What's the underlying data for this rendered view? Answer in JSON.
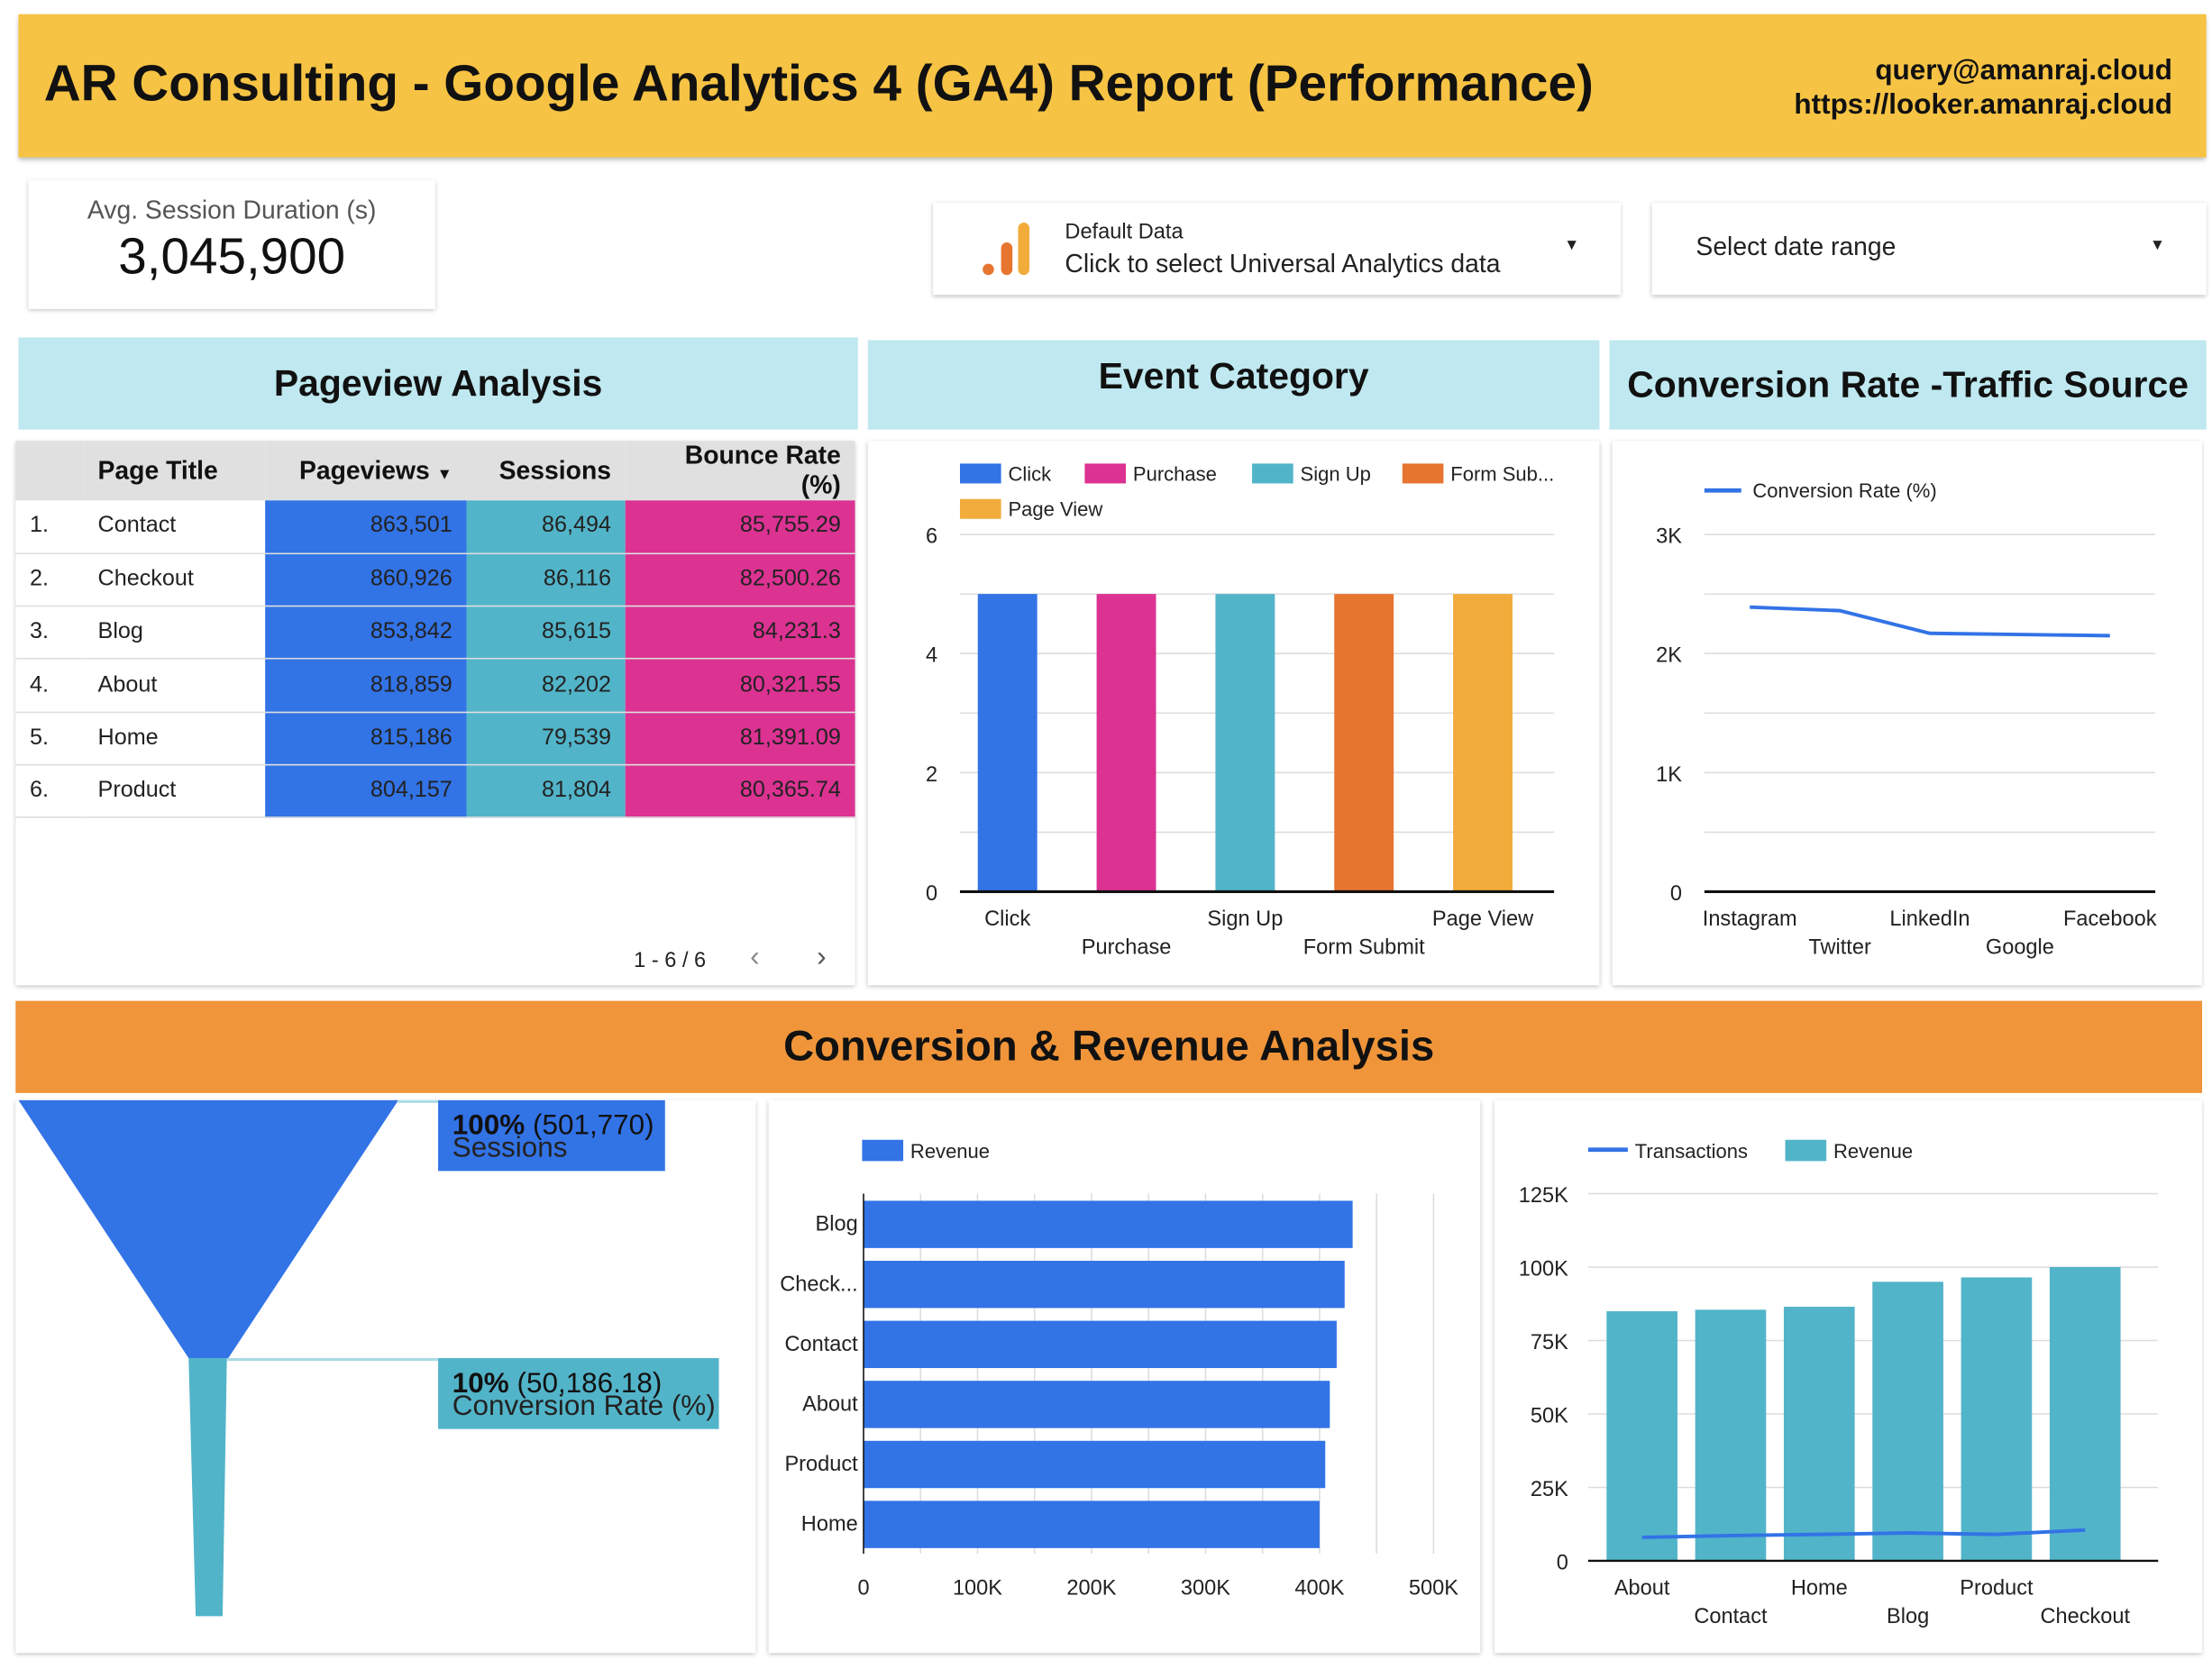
{
  "header": {
    "title": "AR Consulting - Google Analytics 4 (GA4) Report (Performance)",
    "email": "query@amanraj.cloud",
    "url": "https://looker.amanraj.cloud",
    "color": "#f6c344"
  },
  "scorecard": {
    "label": "Avg. Session Duration (s)",
    "value": "3,045,900"
  },
  "data_control": {
    "label": "Default Data",
    "value": "Click to select Universal Analytics data",
    "icon": "analytics-bars-icon"
  },
  "date_range": {
    "label": "Select date range",
    "icon": "caret-down-icon"
  },
  "sections": {
    "pageview": "Pageview Analysis",
    "event": "Event Category",
    "conversion": "Conversion Rate -Traffic Source",
    "revenue": "Conversion & Revenue Analysis"
  },
  "table": {
    "headers": [
      "Page Title",
      "Pageviews",
      "Sessions",
      "Bounce Rate (%)"
    ],
    "sort_icon": "sort-desc-icon",
    "rows": [
      {
        "idx": "1.",
        "title": "Contact",
        "pageviews": "863,501",
        "sessions": "86,494",
        "bounce": "85,755.29"
      },
      {
        "idx": "2.",
        "title": "Checkout",
        "pageviews": "860,926",
        "sessions": "86,116",
        "bounce": "82,500.26"
      },
      {
        "idx": "3.",
        "title": "Blog",
        "pageviews": "853,842",
        "sessions": "85,615",
        "bounce": "84,231.3"
      },
      {
        "idx": "4.",
        "title": "About",
        "pageviews": "818,859",
        "sessions": "82,202",
        "bounce": "80,321.55"
      },
      {
        "idx": "5.",
        "title": "Home",
        "pageviews": "815,186",
        "sessions": "79,539",
        "bounce": "81,391.09"
      },
      {
        "idx": "6.",
        "title": "Product",
        "pageviews": "804,157",
        "sessions": "81,804",
        "bounce": "80,365.74"
      }
    ],
    "pagination": "1 - 6 / 6",
    "colors": {
      "pageviews": "#3273e6",
      "sessions": "#52b4c9",
      "bounce": "#dc3292"
    }
  },
  "chart_data": [
    {
      "type": "bar",
      "categories": [
        "Click",
        "Purchase",
        "Sign Up",
        "Form Submit",
        "Page View"
      ],
      "legend": [
        "Click",
        "Purchase",
        "Sign Up",
        "Form Sub...",
        "Page View"
      ],
      "values": [
        5,
        5,
        5,
        5,
        5
      ],
      "colors": [
        "#3273e6",
        "#dc3292",
        "#52b4c9",
        "#e67530",
        "#f2ac3c"
      ],
      "ylim": [
        0,
        6
      ],
      "yticks": [
        "0",
        "2",
        "4",
        "6"
      ],
      "grid": true,
      "legend_position": "top"
    },
    {
      "type": "line",
      "categories": [
        "Instagram",
        "Twitter",
        "LinkedIn",
        "Google",
        "Facebook"
      ],
      "series": [
        {
          "name": "Conversion Rate (%)",
          "values": [
            2390,
            2360,
            2170,
            2160,
            2150
          ]
        }
      ],
      "ylim": [
        0,
        3000
      ],
      "yticks": [
        "0",
        "1K",
        "2K",
        "3K"
      ],
      "color": "#3273e6",
      "grid": true,
      "legend_position": "top"
    },
    {
      "type": "funnel",
      "stages": [
        {
          "name": "Sessions",
          "percent": "100%",
          "value": "(501,770)",
          "color": "#3273e6"
        },
        {
          "name": "Conversion Rate (%)",
          "percent": "10%",
          "value": "(50,186.18)",
          "color": "#52b4c9"
        }
      ]
    },
    {
      "type": "bar",
      "orientation": "horizontal",
      "categories": [
        "Blog",
        "Check...",
        "Contact",
        "About",
        "Product",
        "Home"
      ],
      "series": [
        {
          "name": "Revenue",
          "values": [
            429000,
            422000,
            415000,
            409000,
            405000,
            400000
          ]
        }
      ],
      "xlim": [
        0,
        500000
      ],
      "xticks": [
        "0",
        "100K",
        "200K",
        "300K",
        "400K",
        "500K"
      ],
      "color": "#3273e6",
      "legend_position": "top"
    },
    {
      "type": "bar",
      "categories": [
        "About",
        "Contact",
        "Home",
        "Blog",
        "Product",
        "Checkout"
      ],
      "series": [
        {
          "name": "Transactions",
          "type": "line",
          "values": [
            8000,
            8600,
            9000,
            9500,
            9000,
            10500
          ],
          "color": "#3273e6"
        },
        {
          "name": "Revenue",
          "type": "bar",
          "values": [
            85000,
            85500,
            86500,
            95000,
            96500,
            100000
          ],
          "color": "#52b4c9"
        }
      ],
      "ylim": [
        0,
        125000
      ],
      "yticks": [
        "0",
        "25K",
        "50K",
        "75K",
        "100K",
        "125K"
      ],
      "grid": true,
      "legend_position": "top"
    }
  ],
  "banner_color": "#f0953a",
  "section_color": "#bfe8f0"
}
